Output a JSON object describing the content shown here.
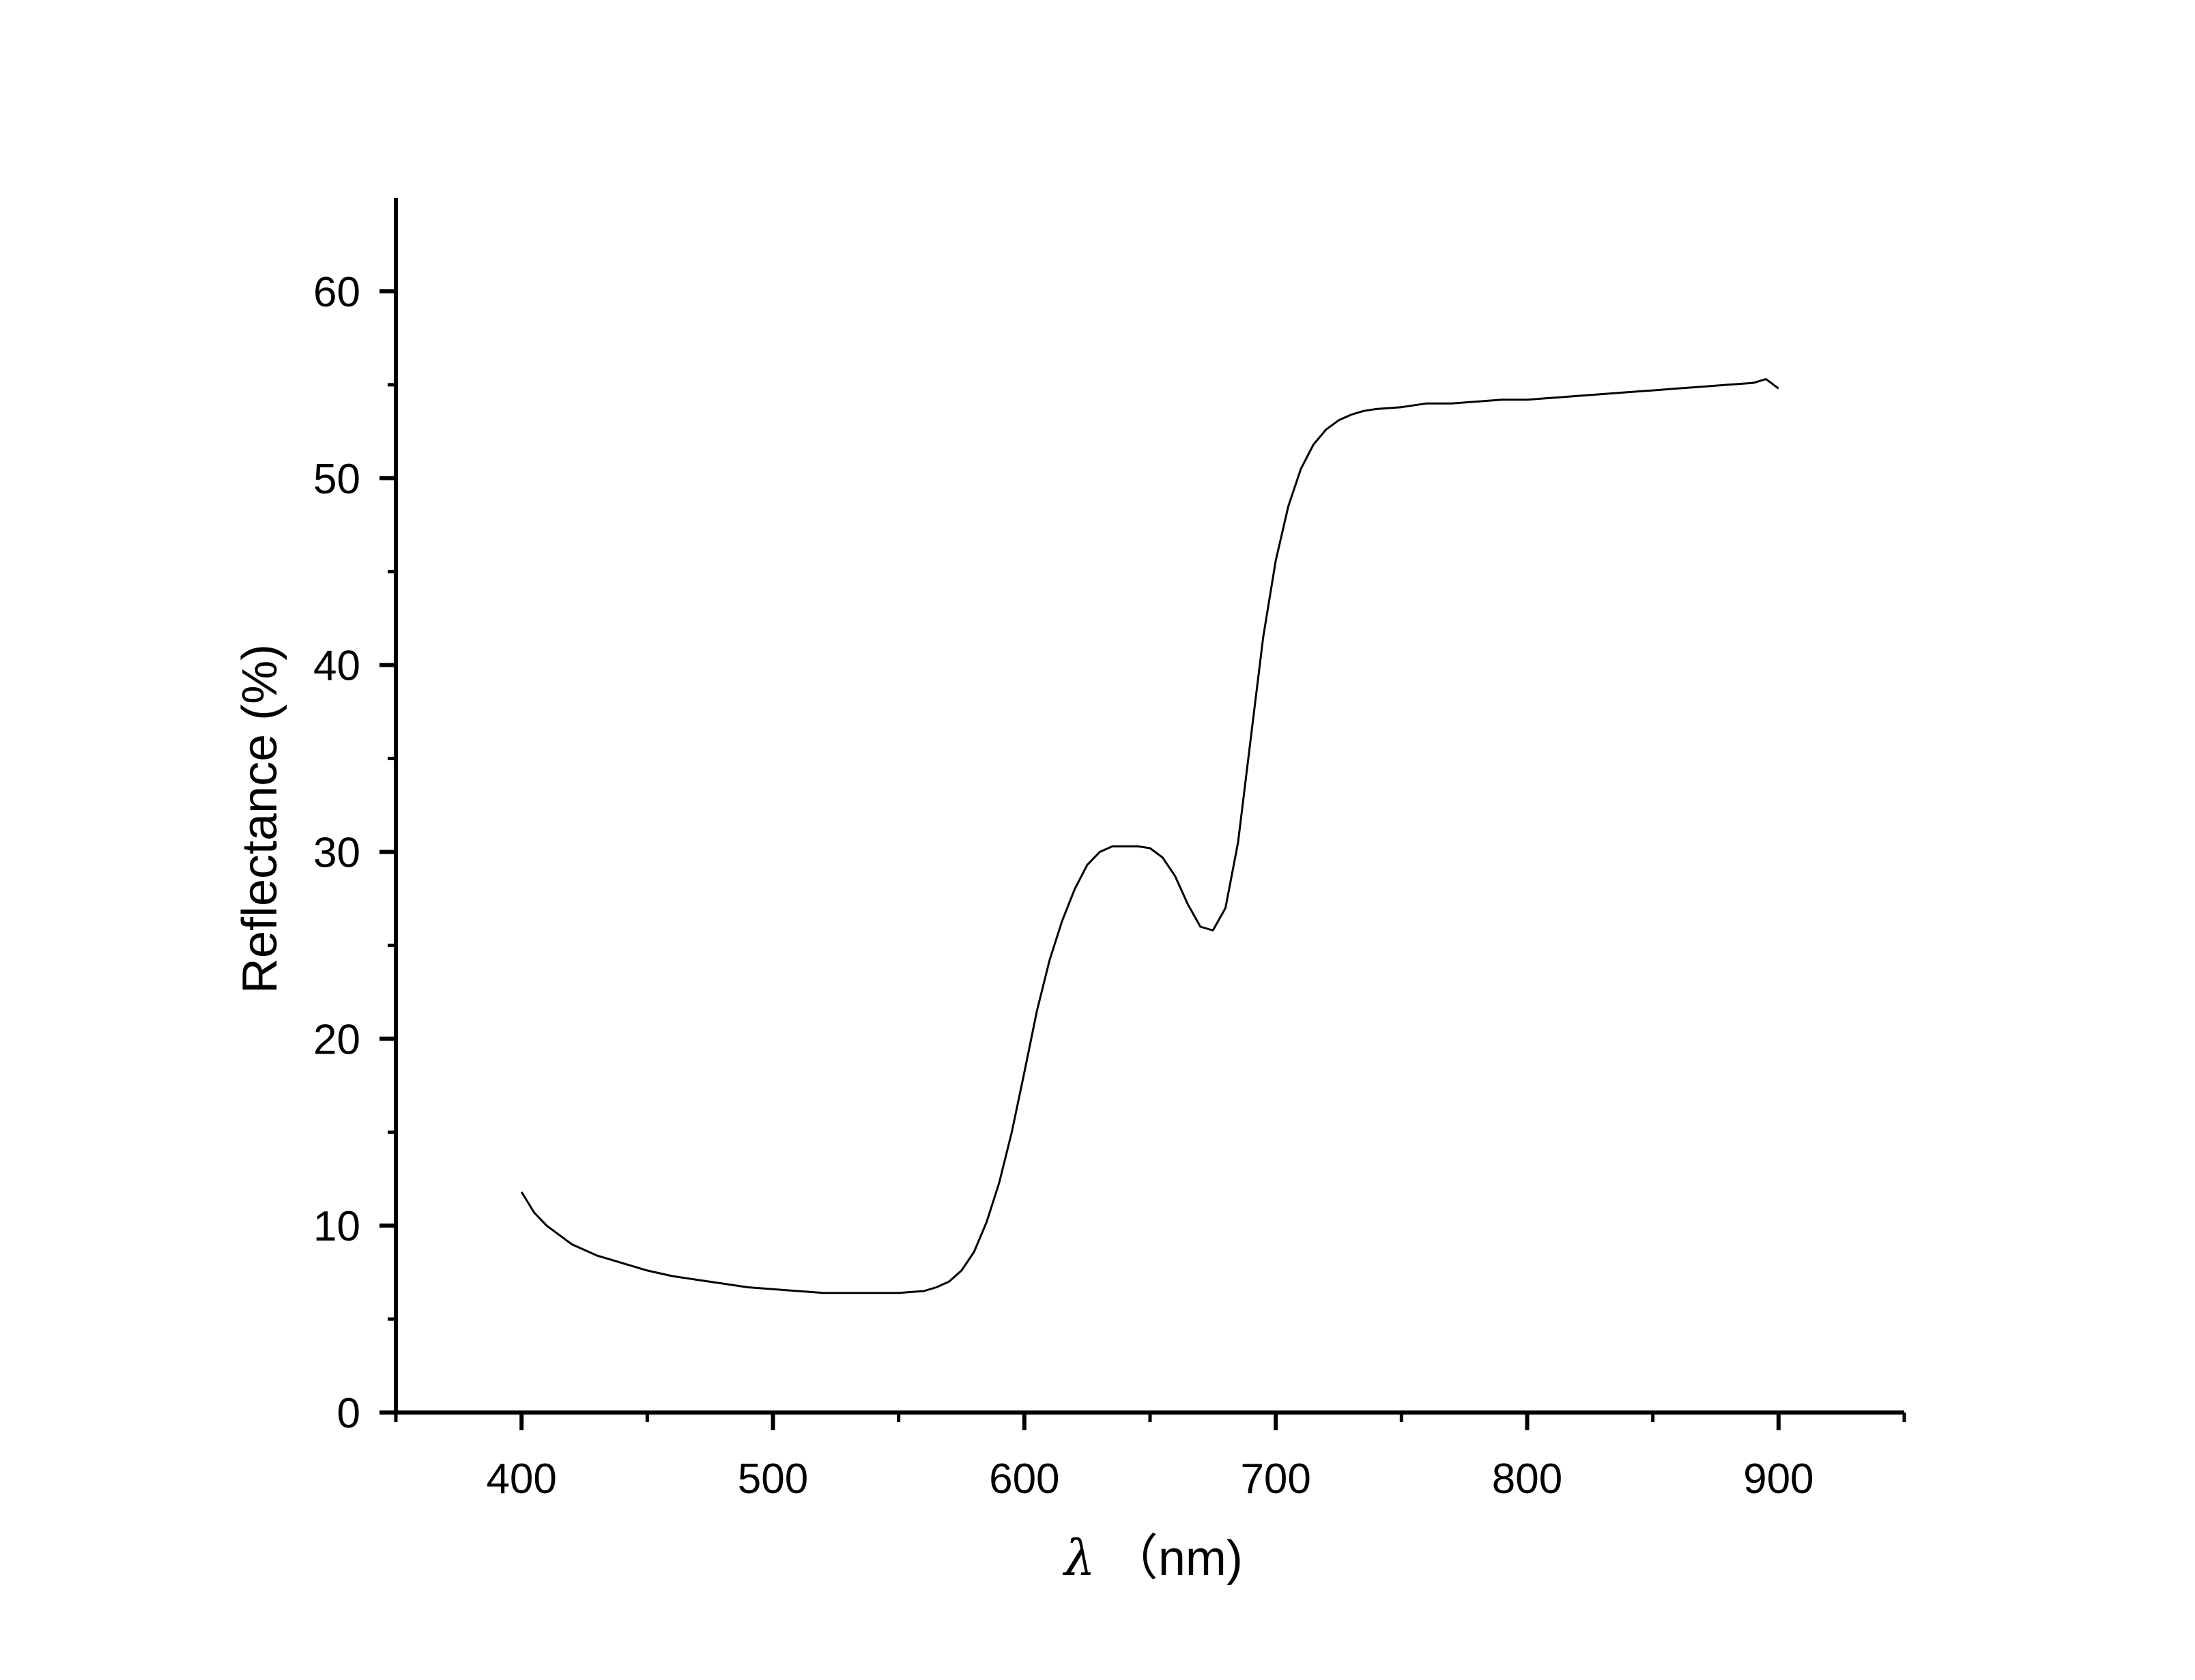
{
  "chart_data": {
    "type": "line",
    "title": "",
    "xlabel": "λ （nm)",
    "ylabel": "Reflectance (%)",
    "xlim": [
      350,
      950
    ],
    "ylim": [
      0,
      65
    ],
    "x_ticks": [
      400,
      500,
      600,
      700,
      800,
      900
    ],
    "y_ticks": [
      0,
      10,
      20,
      30,
      40,
      50,
      60
    ],
    "grid": false,
    "legend": "none",
    "line_color": "#000000",
    "series": [
      {
        "x": [
          400,
          405,
          410,
          415,
          420,
          430,
          440,
          450,
          460,
          470,
          480,
          490,
          500,
          510,
          520,
          530,
          540,
          550,
          560,
          565,
          570,
          575,
          580,
          585,
          590,
          595,
          600,
          605,
          610,
          615,
          620,
          625,
          630,
          635,
          640,
          645,
          650,
          655,
          660,
          665,
          670,
          675,
          680,
          685,
          690,
          695,
          700,
          705,
          710,
          715,
          720,
          725,
          730,
          735,
          740,
          750,
          760,
          770,
          780,
          790,
          800,
          810,
          820,
          830,
          840,
          850,
          860,
          870,
          880,
          890,
          895,
          900
        ],
        "y": [
          11.8,
          10.7,
          10.0,
          9.5,
          9.0,
          8.4,
          8.0,
          7.6,
          7.3,
          7.1,
          6.9,
          6.7,
          6.6,
          6.5,
          6.4,
          6.4,
          6.4,
          6.4,
          6.5,
          6.7,
          7.0,
          7.6,
          8.6,
          10.2,
          12.3,
          15.0,
          18.2,
          21.5,
          24.2,
          26.3,
          28.0,
          29.3,
          30.0,
          30.3,
          30.3,
          30.3,
          30.2,
          29.7,
          28.7,
          27.2,
          26.0,
          25.8,
          27.0,
          30.5,
          36.0,
          41.5,
          45.6,
          48.5,
          50.5,
          51.8,
          52.6,
          53.1,
          53.4,
          53.6,
          53.7,
          53.8,
          54.0,
          54.0,
          54.1,
          54.2,
          54.2,
          54.3,
          54.4,
          54.5,
          54.6,
          54.7,
          54.8,
          54.9,
          55.0,
          55.1,
          55.3,
          54.8
        ]
      }
    ]
  }
}
